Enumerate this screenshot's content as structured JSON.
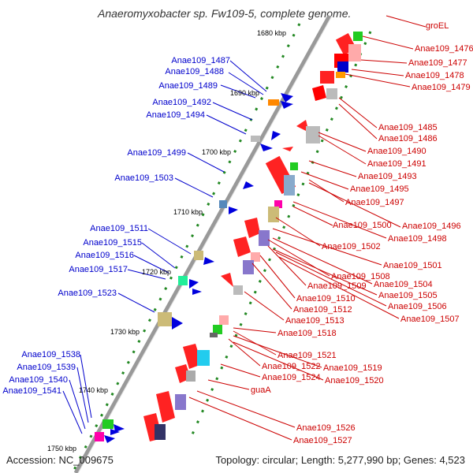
{
  "title": "Anaeromyxobacter sp. Fw109-5, complete genome.",
  "footer": {
    "accession": "Accession: NC_009675",
    "topology": "Topology: circular; Length: 5,277,990 bp; Genes: 4,523"
  },
  "colors": {
    "left_labels": "#0000cc",
    "right_labels": "#cc0000",
    "backbone": "#888888",
    "tick_dots": "#228822"
  },
  "kbp_ticks": [
    "1680 kbp",
    "1690 kbp",
    "1700 kbp",
    "1710 kbp",
    "1720 kbp",
    "1730 kbp",
    "1740 kbp",
    "1750 kbp"
  ],
  "left_labels": [
    "Anae109_1487",
    "Anae109_1488",
    "Anae109_1489",
    "Anae109_1492",
    "Anae109_1494",
    "Anae109_1499",
    "Anae109_1503",
    "Anae109_1511",
    "Anae109_1515",
    "Anae109_1516",
    "Anae109_1517",
    "Anae109_1523",
    "Anae109_1538",
    "Anae109_1539",
    "Anae109_1540",
    "Anae109_1541"
  ],
  "right_labels": [
    "groEL",
    "Anae109_1476",
    "Anae109_1477",
    "Anae109_1478",
    "Anae109_1479",
    "Anae109_1485",
    "Anae109_1486",
    "Anae109_1490",
    "Anae109_1491",
    "Anae109_1493",
    "Anae109_1495",
    "Anae109_1497",
    "Anae109_1496",
    "Anae109_1500",
    "Anae109_1498",
    "Anae109_1502",
    "Anae109_1501",
    "Anae109_1508",
    "Anae109_1504",
    "Anae109_1509",
    "Anae109_1505",
    "Anae109_1510",
    "Anae109_1506",
    "Anae109_1512",
    "Anae109_1507",
    "Anae109_1513",
    "Anae109_1518",
    "Anae109_1521",
    "Anae109_1522",
    "Anae109_1519",
    "Anae109_1524",
    "Anae109_1520",
    "guaA",
    "Anae109_1526",
    "Anae109_1527"
  ]
}
